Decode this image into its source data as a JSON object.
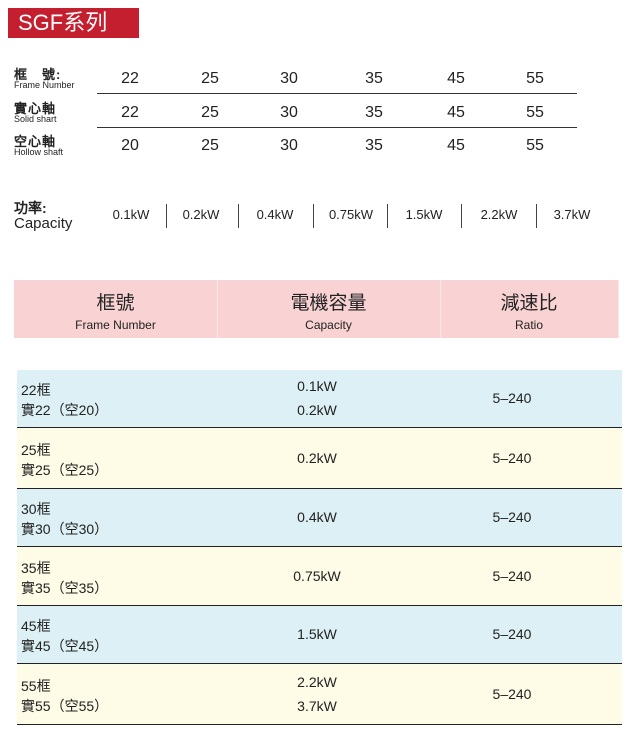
{
  "title": "SGF系列",
  "spec": {
    "rows": [
      {
        "zh": "框　號:",
        "en": "Frame Number",
        "values": [
          "22",
          "25",
          "30",
          "35",
          "45",
          "55"
        ]
      },
      {
        "zh": "實心軸",
        "en": "Solid shart",
        "values": [
          "22",
          "25",
          "30",
          "35",
          "45",
          "55"
        ]
      },
      {
        "zh": "空心軸",
        "en": "Hollow shaft",
        "values": [
          "20",
          "25",
          "30",
          "35",
          "45",
          "55"
        ]
      }
    ],
    "capacity": {
      "zh": "功率:",
      "en": "Capacity",
      "values": [
        "0.1kW",
        "0.2kW",
        "0.4kW",
        "0.75kW",
        "1.5kW",
        "2.2kW",
        "3.7kW"
      ]
    }
  },
  "table": {
    "headers": [
      {
        "zh": "框號",
        "en": "Frame Number"
      },
      {
        "zh": "電機容量",
        "en": "Capacity"
      },
      {
        "zh": "減速比",
        "en": "Ratio"
      }
    ],
    "rows": [
      {
        "frame": "22框",
        "shaft": "實22（空20）",
        "capacity": [
          "0.1kW",
          "0.2kW"
        ],
        "ratio": "5–240"
      },
      {
        "frame": "25框",
        "shaft": "實25（空25）",
        "capacity": [
          "0.2kW"
        ],
        "ratio": "5–240"
      },
      {
        "frame": "30框",
        "shaft": "實30（空30）",
        "capacity": [
          "0.4kW"
        ],
        "ratio": "5–240"
      },
      {
        "frame": "35框",
        "shaft": "實35（空35）",
        "capacity": [
          "0.75kW"
        ],
        "ratio": "5–240"
      },
      {
        "frame": "45框",
        "shaft": "實45（空45）",
        "capacity": [
          "1.5kW"
        ],
        "ratio": "5–240"
      },
      {
        "frame": "55框",
        "shaft": "實55（空55）",
        "capacity": [
          "2.2kW",
          "3.7kW"
        ],
        "ratio": "5–240"
      }
    ]
  },
  "colors": {
    "title_bg": "#c41f2e",
    "header_bg": "#f9d3d3",
    "row_blue": "#dcf0f5",
    "row_yellow": "#fefbe6"
  }
}
